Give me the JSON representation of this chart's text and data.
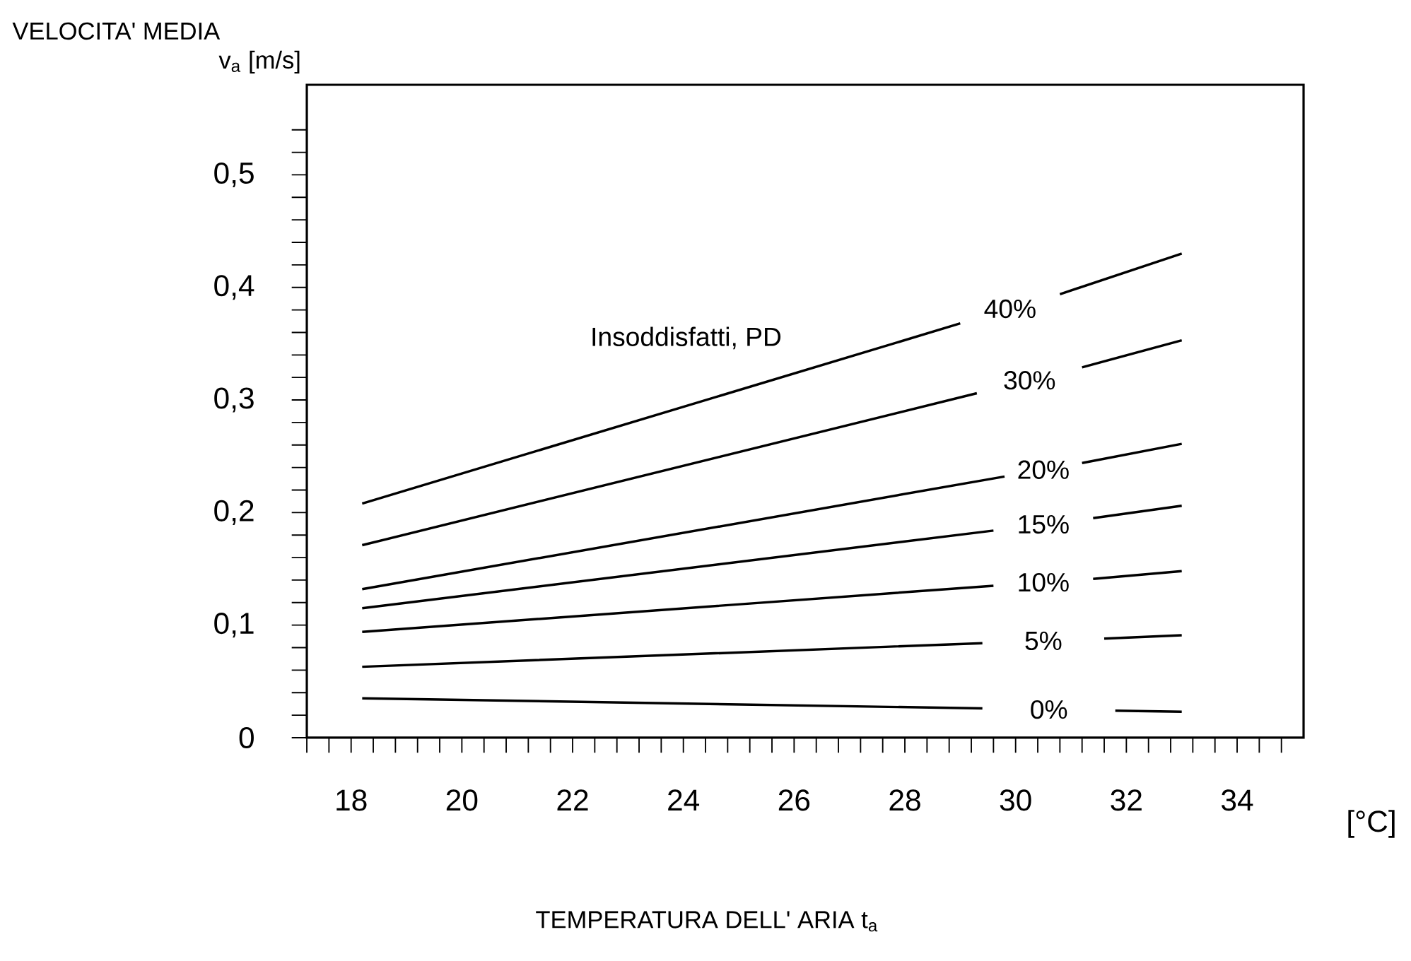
{
  "chart_data": {
    "type": "line",
    "title": "VELOCITA' MEDIA",
    "ylabel": "v$_{a}$  [m/s]",
    "xlabel": "TEMPERATURA DELL' ARIA  t$_{a}$",
    "annotations": [
      "Insoddisfatti,  PD",
      "[°C]"
    ],
    "xlim": [
      17.2,
      35.2
    ],
    "ylim": [
      0,
      0.58
    ],
    "xticks": [
      {
        "value": 17.2,
        "label": null
      },
      {
        "value": 17.6,
        "label": null
      },
      18,
      {
        "value": 18.4,
        "label": null
      },
      {
        "value": 18.8,
        "label": null
      },
      {
        "value": 19.2,
        "label": null
      },
      {
        "value": 19.6,
        "label": null
      },
      20,
      {
        "value": 20.4,
        "label": null
      },
      {
        "value": 20.8,
        "label": null
      },
      {
        "value": 21.2,
        "label": null
      },
      {
        "value": 21.6,
        "label": null
      },
      22,
      {
        "value": 22.4,
        "label": null
      },
      {
        "value": 22.8,
        "label": null
      },
      {
        "value": 23.2,
        "label": null
      },
      {
        "value": 23.6,
        "label": null
      },
      24,
      {
        "value": 24.4,
        "label": null
      },
      {
        "value": 24.8,
        "label": null
      },
      {
        "value": 25.2,
        "label": null
      },
      {
        "value": 25.6,
        "label": null
      },
      26,
      {
        "value": 26.4,
        "label": null
      },
      {
        "value": 26.8,
        "label": null
      },
      {
        "value": 27.2,
        "label": null
      },
      {
        "value": 27.6,
        "label": null
      },
      28,
      {
        "value": 28.4,
        "label": null
      },
      {
        "value": 28.8,
        "label": null
      },
      {
        "value": 29.2,
        "label": null
      },
      {
        "value": 29.6,
        "label": null
      },
      30,
      {
        "value": 30.4,
        "label": null
      },
      {
        "value": 30.8,
        "label": null
      },
      {
        "value": 31.2,
        "label": null
      },
      {
        "value": 31.6,
        "label": null
      },
      32,
      {
        "value": 32.4,
        "label": null
      },
      {
        "value": 32.8,
        "label": null
      },
      {
        "value": 33.2,
        "label": null
      },
      {
        "value": 33.6,
        "label": null
      },
      34,
      {
        "value": 34.4,
        "label": null
      },
      {
        "value": 34.8,
        "label": null
      }
    ],
    "yticks": [
      0,
      {
        "value": 0.02,
        "label": null
      },
      {
        "value": 0.04,
        "label": null
      },
      {
        "value": 0.06,
        "label": null
      },
      {
        "value": 0.08,
        "label": null
      },
      {
        "value": 0.1,
        "label": "0,1"
      },
      {
        "value": 0.12,
        "label": null
      },
      {
        "value": 0.14,
        "label": null
      },
      {
        "value": 0.16,
        "label": null
      },
      {
        "value": 0.18,
        "label": null
      },
      {
        "value": 0.2,
        "label": "0,2"
      },
      {
        "value": 0.22,
        "label": null
      },
      {
        "value": 0.24,
        "label": null
      },
      {
        "value": 0.26,
        "label": null
      },
      {
        "value": 0.28,
        "label": null
      },
      {
        "value": 0.3,
        "label": "0,3"
      },
      {
        "value": 0.32,
        "label": null
      },
      {
        "value": 0.34,
        "label": null
      },
      {
        "value": 0.36,
        "label": null
      },
      {
        "value": 0.38,
        "label": null
      },
      {
        "value": 0.4,
        "label": "0,4"
      },
      {
        "value": 0.42,
        "label": null
      },
      {
        "value": 0.44,
        "label": null
      },
      {
        "value": 0.46,
        "label": null
      },
      {
        "value": 0.48,
        "label": null
      },
      {
        "value": 0.5,
        "label": "0,5"
      },
      {
        "value": 0.52,
        "label": null
      },
      {
        "value": 0.54,
        "label": null
      }
    ],
    "marker": "none",
    "line_style": "solid",
    "series": [
      {
        "name": "40%",
        "color": "#000000",
        "x": [
          18.2,
          29.0,
          29.9,
          30.8,
          33.0
        ],
        "values": [
          0.208,
          0.368,
          null,
          0.394,
          0.43
        ]
      },
      {
        "name": "30%",
        "color": "#000000",
        "x": [
          18.2,
          29.3,
          30.2,
          31.2,
          33.0
        ],
        "values": [
          0.171,
          0.306,
          null,
          0.329,
          0.353
        ]
      },
      {
        "name": "20%",
        "color": "#000000",
        "x": [
          18.2,
          29.8,
          30.5,
          31.2,
          33.0
        ],
        "values": [
          0.132,
          0.232,
          null,
          0.244,
          0.261
        ]
      },
      {
        "name": "15%",
        "color": "#000000",
        "x": [
          18.2,
          29.6,
          30.5,
          31.4,
          33.0
        ],
        "values": [
          0.115,
          0.184,
          null,
          0.195,
          0.206
        ]
      },
      {
        "name": "10%",
        "color": "#000000",
        "x": [
          18.2,
          29.6,
          30.5,
          31.4,
          33.0
        ],
        "values": [
          0.094,
          0.135,
          null,
          0.141,
          0.148
        ]
      },
      {
        "name": "5%",
        "color": "#000000",
        "x": [
          18.2,
          29.4,
          30.5,
          31.6,
          33.0
        ],
        "values": [
          0.063,
          0.084,
          null,
          0.088,
          0.091
        ]
      },
      {
        "name": "0%",
        "color": "#000000",
        "x": [
          18.2,
          29.4,
          30.6,
          31.8,
          33.0
        ],
        "values": [
          0.035,
          0.026,
          null,
          0.024,
          0.023
        ]
      }
    ]
  }
}
